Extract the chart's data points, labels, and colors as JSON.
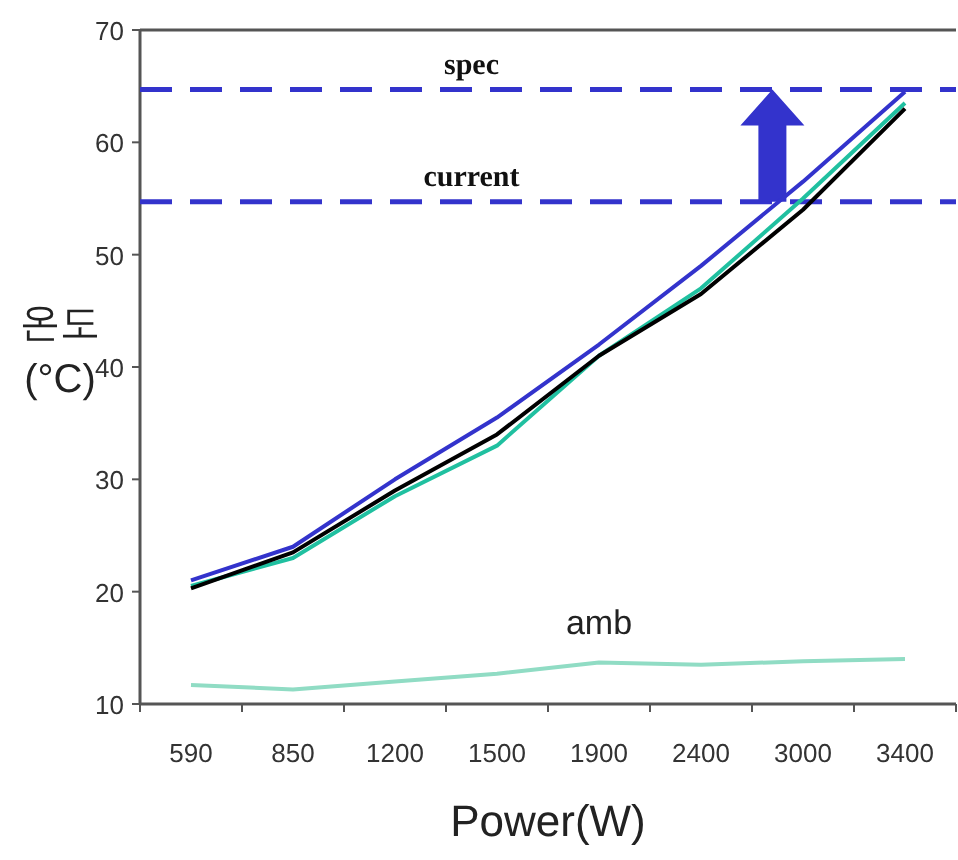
{
  "chart_data": {
    "type": "line",
    "xlabel": "Power(W)",
    "ylabel": "온도\n(°C)",
    "categories": [
      "590",
      "850",
      "1200",
      "1500",
      "1900",
      "2400",
      "3000",
      "3400"
    ],
    "series": [
      {
        "color": "#3333cc",
        "values": [
          21,
          24,
          30,
          35.5,
          42,
          49,
          56.5,
          64.5
        ]
      },
      {
        "color": "#20c0a0",
        "values": [
          20.5,
          23,
          28.5,
          33,
          41,
          47,
          55,
          63.5
        ]
      },
      {
        "color": "#000000",
        "values": [
          20.3,
          23.5,
          29,
          34,
          41,
          46.5,
          54,
          63
        ]
      },
      {
        "name": "amb",
        "color": "#90dcc4",
        "values": [
          11.7,
          11.3,
          12,
          12.7,
          13.7,
          13.5,
          13.8,
          14
        ]
      }
    ],
    "ylim": [
      10,
      70
    ],
    "yticks": [
      10,
      20,
      30,
      40,
      50,
      60,
      70
    ],
    "ref_lines": [
      {
        "axis": "y",
        "value": 64.7,
        "label": "spec",
        "color": "#3333cc",
        "line_style": "dashed"
      },
      {
        "axis": "y",
        "value": 54.7,
        "label": "current",
        "color": "#3333cc",
        "line_style": "dashed"
      }
    ],
    "grid": false,
    "marker": "none",
    "line_style": "solid"
  }
}
